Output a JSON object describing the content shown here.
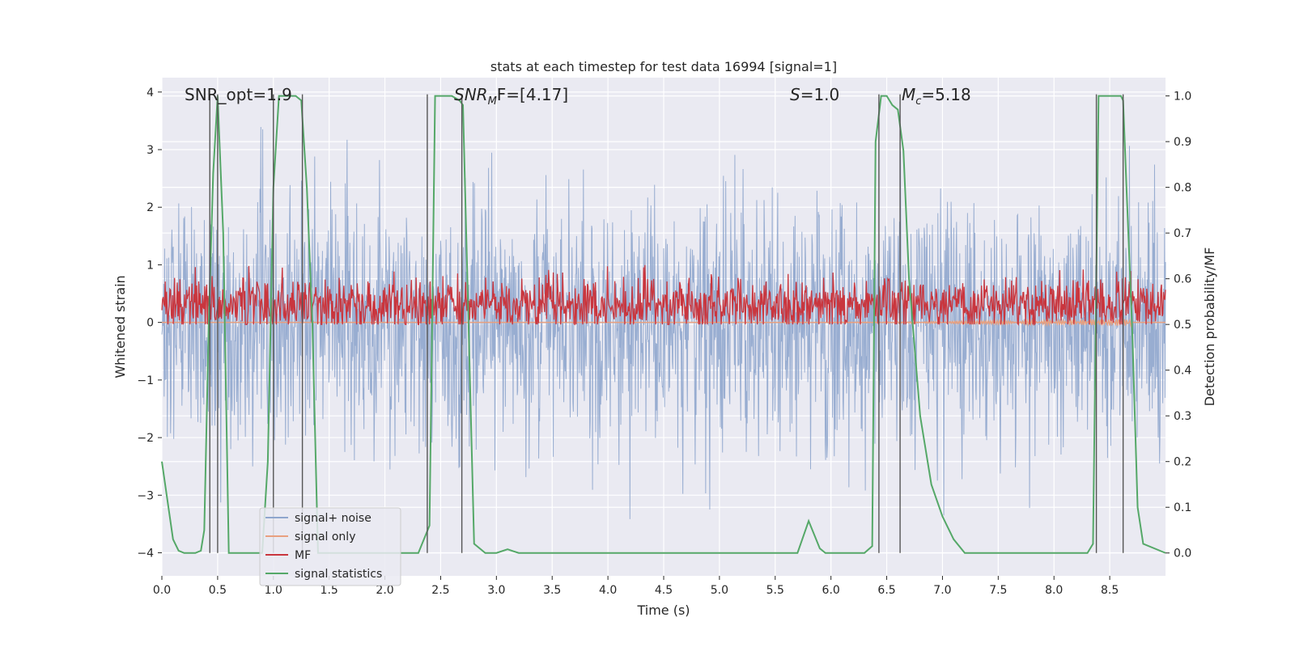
{
  "chart_data": {
    "type": "line",
    "title": "stats at each timestep for test data 16994 [signal=1]",
    "xlabel": "Time (s)",
    "ylabel_left": "Whitened strain",
    "ylabel_right": "Detection probability/MF",
    "xlim": [
      0.0,
      9.0
    ],
    "ylim_left": [
      -4.4,
      4.25
    ],
    "ylim_right": [
      -0.05,
      1.04
    ],
    "x_ticks": [
      "0.0",
      "0.5",
      "1.0",
      "1.5",
      "2.0",
      "2.5",
      "3.0",
      "3.5",
      "4.0",
      "4.5",
      "5.0",
      "5.5",
      "6.0",
      "6.5",
      "7.0",
      "7.5",
      "8.0",
      "8.5"
    ],
    "y_ticks_left": [
      "−4",
      "−3",
      "−2",
      "−1",
      "0",
      "1",
      "2",
      "3",
      "4"
    ],
    "y_ticks_right": [
      "0.0",
      "0.1",
      "0.2",
      "0.3",
      "0.4",
      "0.5",
      "0.6",
      "0.7",
      "0.8",
      "0.9",
      "1.0"
    ],
    "grid": true,
    "background": "#eaeaf2",
    "legend_position": "lower-left",
    "annotations": [
      {
        "text": "SNR_opt=1.9"
      },
      {
        "text": "SNR",
        "sub": "M",
        "rest": "F=[4.17]"
      },
      {
        "text": "S",
        "rest": "=1.0"
      },
      {
        "text": "M",
        "sub": "c",
        "rest": "=5.18"
      }
    ],
    "vertical_lines": [
      0.43,
      0.5,
      1.0,
      1.26,
      2.38,
      2.69,
      6.43,
      6.62,
      8.38,
      8.62
    ],
    "series": [
      {
        "name": "signal+ noise",
        "color": "#8fa6cd",
        "axis": "left",
        "kind": "noise",
        "std": 1.05
      },
      {
        "name": "signal only",
        "color": "#e8a07f",
        "axis": "left",
        "kind": "chirp"
      },
      {
        "name": "MF",
        "color": "#c9363e",
        "axis": "right",
        "kind": "mf",
        "mean": 0.545,
        "std": 0.03
      },
      {
        "name": "signal statistics",
        "color": "#55a868",
        "axis": "right",
        "kind": "stats",
        "x": [
          0.0,
          0.1,
          0.15,
          0.2,
          0.25,
          0.3,
          0.35,
          0.38,
          0.42,
          0.46,
          0.5,
          0.55,
          0.6,
          0.65,
          0.7,
          0.8,
          0.9,
          0.95,
          1.0,
          1.05,
          1.1,
          1.2,
          1.25,
          1.3,
          1.35,
          1.4,
          1.5,
          2.0,
          2.3,
          2.4,
          2.45,
          2.5,
          2.6,
          2.67,
          2.7,
          2.75,
          2.8,
          2.9,
          3.0,
          3.1,
          3.2,
          3.3,
          3.5,
          4.0,
          5.0,
          5.5,
          5.6,
          5.7,
          5.8,
          5.85,
          5.9,
          5.95,
          6.0,
          6.3,
          6.37,
          6.4,
          6.45,
          6.5,
          6.55,
          6.6,
          6.65,
          6.7,
          6.8,
          6.9,
          7.0,
          7.1,
          7.2,
          8.0,
          8.3,
          8.35,
          8.4,
          8.45,
          8.5,
          8.55,
          8.6,
          8.62,
          8.65,
          8.7,
          8.75,
          8.8,
          9.0
        ],
        "values": [
          0.2,
          0.03,
          0.005,
          0.0,
          0.0,
          0.0,
          0.005,
          0.05,
          0.5,
          0.83,
          1.0,
          0.7,
          0.0,
          0.0,
          0.0,
          0.0,
          0.0,
          0.2,
          0.8,
          1.0,
          1.0,
          1.0,
          0.99,
          0.8,
          0.5,
          0.0,
          0.0,
          0.0,
          0.0,
          0.06,
          1.0,
          1.0,
          1.0,
          0.99,
          0.98,
          0.5,
          0.02,
          0.0,
          0.0,
          0.008,
          0.0,
          0.0,
          0.0,
          0.0,
          0.0,
          0.0,
          0.0,
          0.0,
          0.07,
          0.04,
          0.01,
          0.0,
          0.0,
          0.0,
          0.015,
          0.9,
          1.0,
          1.0,
          0.98,
          0.97,
          0.88,
          0.6,
          0.3,
          0.15,
          0.08,
          0.03,
          0.0,
          0.0,
          0.0,
          0.02,
          1.0,
          1.0,
          1.0,
          1.0,
          1.0,
          0.99,
          0.8,
          0.5,
          0.1,
          0.02,
          0.0
        ]
      }
    ]
  }
}
